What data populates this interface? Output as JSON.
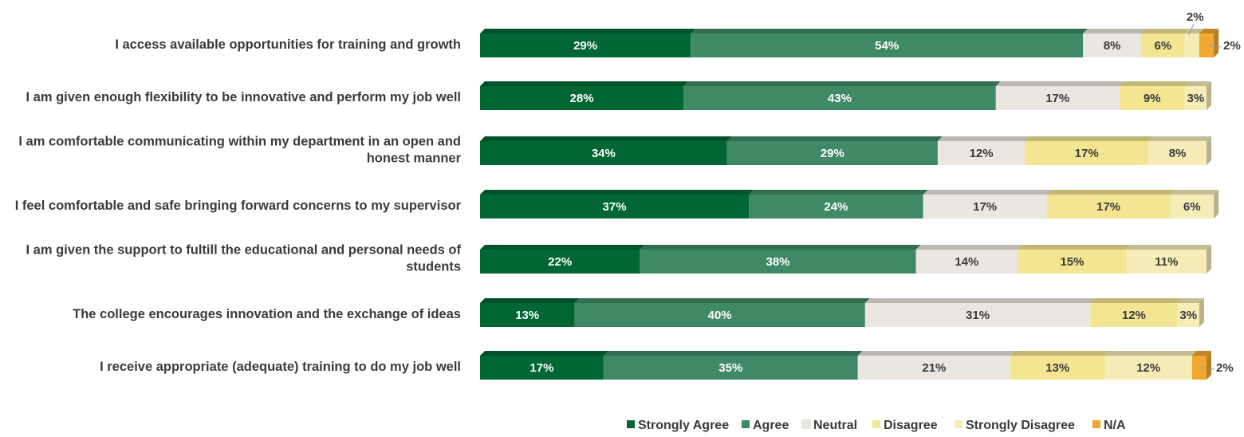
{
  "chart_data": {
    "type": "bar",
    "orientation": "horizontal",
    "stacked": true,
    "categories": [
      "I access available opportunities for training and growth",
      "I am given enough flexibility to be innovative and perform my job well",
      "I am comfortable communicating within my department in an open and honest manner",
      "I feel comfortable and safe bringing forward concerns to my supervisor",
      "I am given the support to fultill the educational and personal needs of students",
      "The college encourages innovation and the exchange of ideas",
      "I receive appropriate (adequate) training to do my job well"
    ],
    "series": [
      {
        "name": "Strongly Agree",
        "color": "#006633",
        "text_color": "#ffffff",
        "values": [
          29,
          28,
          34,
          37,
          22,
          13,
          17
        ]
      },
      {
        "name": "Agree",
        "color": "#3f8a64",
        "text_color": "#ffffff",
        "values": [
          54,
          43,
          29,
          24,
          38,
          40,
          35
        ]
      },
      {
        "name": "Neutral",
        "color": "#ebe6df",
        "text_color": "#3a3a3a",
        "values": [
          8,
          17,
          12,
          17,
          14,
          31,
          21
        ]
      },
      {
        "name": "Disagree",
        "color": "#f3e592",
        "text_color": "#3a3a3a",
        "values": [
          6,
          9,
          17,
          17,
          15,
          12,
          13
        ]
      },
      {
        "name": "Strongly Disagree",
        "color": "#f5ecb8",
        "text_color": "#3a3a3a",
        "values": [
          2,
          3,
          8,
          6,
          11,
          3,
          12
        ]
      },
      {
        "name": "N/A",
        "color": "#f0a830",
        "text_color": "#3a3a3a",
        "values": [
          2,
          0,
          0,
          0,
          0,
          0,
          2
        ]
      }
    ],
    "category_labels": [
      [
        "I access available opportunities for training and growth"
      ],
      [
        "I am given enough flexibility to be innovative and perform my job well"
      ],
      [
        "I am comfortable communicating within my department in an open and",
        "honest manner"
      ],
      [
        "I feel comfortable and safe bringing forward concerns to my supervisor"
      ],
      [
        "I am given the support to fultill the educational and personal needs of",
        "students"
      ],
      [
        "The college encourages innovation and the exchange of ideas"
      ],
      [
        "I receive appropriate (adequate) training to do my job well"
      ]
    ],
    "data_labels": [
      [
        "29%",
        "54%",
        "8%",
        "6%",
        "2%",
        "2%"
      ],
      [
        "28%",
        "43%",
        "17%",
        "9%",
        "3%",
        ""
      ],
      [
        "34%",
        "29%",
        "12%",
        "17%",
        "8%",
        ""
      ],
      [
        "37%",
        "24%",
        "17%",
        "17%",
        "6%",
        ""
      ],
      [
        "22%",
        "38%",
        "14%",
        "15%",
        "11%",
        ""
      ],
      [
        "13%",
        "40%",
        "31%",
        "12%",
        "3%",
        ""
      ],
      [
        "17%",
        "35%",
        "21%",
        "13%",
        "12%",
        "2%"
      ]
    ],
    "xlim": [
      0,
      100
    ],
    "legend_position": "bottom-right",
    "grid": false,
    "title": "",
    "xlabel": "",
    "ylabel": ""
  }
}
